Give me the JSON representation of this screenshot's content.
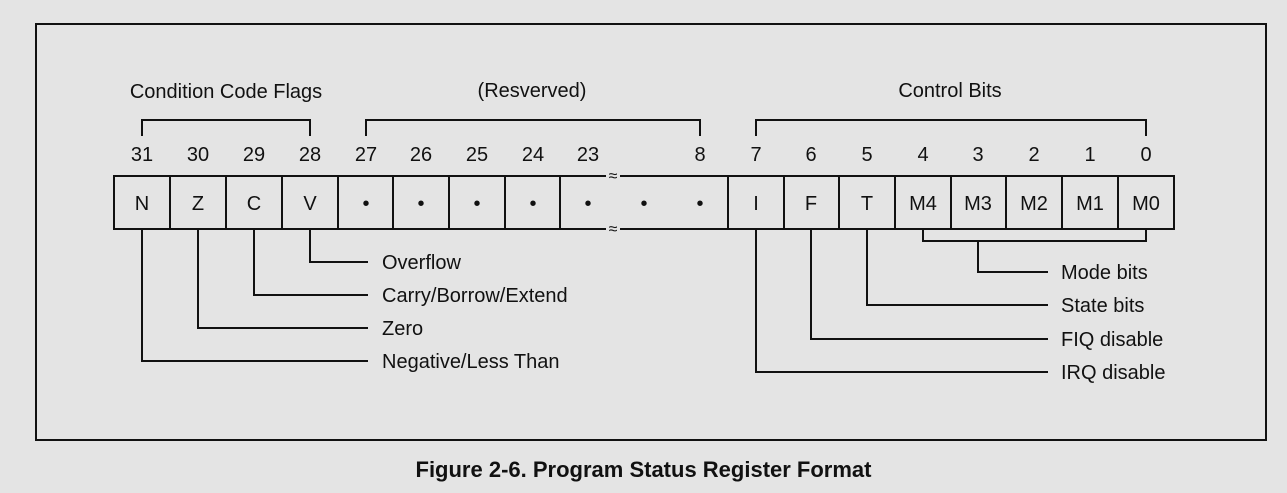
{
  "groups": {
    "condition": "Condition Code Flags",
    "reserved": "(Resverved)",
    "control": "Control Bits"
  },
  "bit_numbers": [
    "31",
    "30",
    "29",
    "28",
    "27",
    "26",
    "25",
    "24",
    "23",
    "8",
    "7",
    "6",
    "5",
    "4",
    "3",
    "2",
    "1",
    "0"
  ],
  "cells": [
    "N",
    "Z",
    "C",
    "V",
    "•",
    "•",
    "•",
    "•",
    "•",
    "•",
    "•",
    "I",
    "F",
    "T",
    "M4",
    "M3",
    "M2",
    "M1",
    "M0"
  ],
  "break_mark": "≈",
  "descriptions": {
    "overflow": "Overflow",
    "carry": "Carry/Borrow/Extend",
    "zero": "Zero",
    "negative": "Negative/Less Than",
    "mode": "Mode bits",
    "state": "State bits",
    "fiq": "FIQ disable",
    "irq": "IRQ disable"
  },
  "caption": "Figure 2-6. Program Status Register Format"
}
